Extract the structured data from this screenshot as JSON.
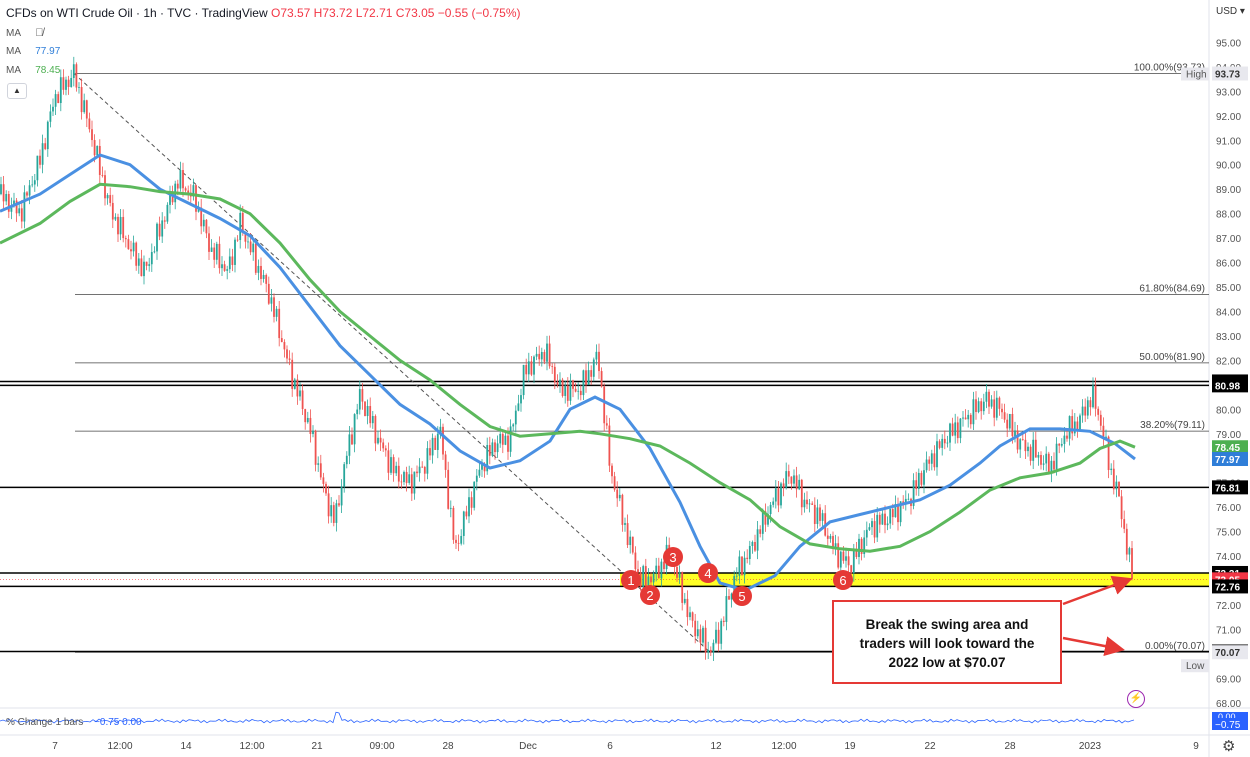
{
  "header": {
    "symbol_title": "CFDs on WTI Crude Oil · 1h · TVC · TradingView",
    "ohlc": "O73.57 H73.72 L72.71 C73.05 −0.55 (−0.75%)"
  },
  "indicators": {
    "ma_label": "MA",
    "ma_hidden_icon": "eye-crossed-icon",
    "ma1_value": "77.97",
    "ma2_value": "78.45"
  },
  "currency": "USD",
  "percent_change": {
    "label": "% Change 1 bars",
    "value": "−0.75 0.00",
    "axis_top": "0.00",
    "axis_bottom": "−0.75"
  },
  "annotation": {
    "line1": "Break the swing area and",
    "line2": "traders will look toward the",
    "line3": "2022 low at $70.07"
  },
  "colors": {
    "ma_blue": "#4a90e2",
    "ma_green": "#5cb85c",
    "up_candle": "#26a69a",
    "down_candle": "#ef5350",
    "highlight": "#ffff00",
    "annotation_red": "#e53935"
  },
  "chart_data": {
    "type": "line",
    "title": "CFDs on WTI Crude Oil · 1h · TVC",
    "y_axis_ticks": [
      "95.00",
      "94.00",
      "93.00",
      "92.00",
      "91.00",
      "90.00",
      "89.00",
      "88.00",
      "87.00",
      "86.00",
      "85.00",
      "84.00",
      "83.00",
      "82.00",
      "81.00",
      "80.00",
      "79.00",
      "78.00",
      "77.00",
      "76.00",
      "75.00",
      "74.00",
      "73.00",
      "72.00",
      "71.00",
      "70.00",
      "69.00",
      "68.00"
    ],
    "ylim": [
      67.5,
      95.5
    ],
    "x_axis_ticks": [
      "7",
      "12:00",
      "14",
      "12:00",
      "21",
      "09:00",
      "28",
      "Dec",
      "6",
      "12",
      "12:00",
      "19",
      "22",
      "28",
      "2023",
      "9"
    ],
    "fib_levels": [
      {
        "label": "100.00%(93.73)",
        "value": 93.73
      },
      {
        "label": "61.80%(84.69)",
        "value": 84.69
      },
      {
        "label": "50.00%(81.90)",
        "value": 81.9
      },
      {
        "label": "38.20%(79.11)",
        "value": 79.11
      },
      {
        "label": "0.00%(70.07)",
        "value": 70.07
      }
    ],
    "horizontal_levels": [
      81.14,
      80.98,
      76.81,
      73.31,
      72.76,
      70.1
    ],
    "price_tags": [
      {
        "text": "93.73",
        "value": 93.73,
        "style": "label"
      },
      {
        "text": "81.14",
        "value": 81.14,
        "style": "black"
      },
      {
        "text": "80.98",
        "value": 80.98,
        "style": "black"
      },
      {
        "text": "78.45",
        "value": 78.45,
        "style": "green"
      },
      {
        "text": "77.97",
        "value": 77.97,
        "style": "blue"
      },
      {
        "text": "76.81",
        "value": 76.81,
        "style": "black"
      },
      {
        "text": "73.31",
        "value": 73.31,
        "style": "black"
      },
      {
        "text": "73.05",
        "value": 73.05,
        "style": "red"
      },
      {
        "text": "72.76",
        "value": 72.76,
        "style": "black"
      },
      {
        "text": "70.10",
        "value": 70.1,
        "style": "black"
      },
      {
        "text": "70.07",
        "value": 70.07,
        "style": "label"
      }
    ],
    "high_label": "High",
    "low_label": "Low",
    "swing_zone": [
      72.76,
      73.31
    ],
    "swing_points": [
      "1",
      "2",
      "3",
      "4",
      "5",
      "6"
    ],
    "price_series": [
      [
        0,
        88.8
      ],
      [
        20,
        88.0
      ],
      [
        40,
        90.2
      ],
      [
        55,
        92.8
      ],
      [
        74,
        93.73
      ],
      [
        90,
        91.4
      ],
      [
        110,
        88.2
      ],
      [
        130,
        86.6
      ],
      [
        145,
        85.6
      ],
      [
        160,
        87.4
      ],
      [
        178,
        89.4
      ],
      [
        195,
        88.6
      ],
      [
        210,
        86.6
      ],
      [
        228,
        85.6
      ],
      [
        240,
        87.6
      ],
      [
        256,
        86.0
      ],
      [
        270,
        84.6
      ],
      [
        290,
        81.6
      ],
      [
        310,
        79.2
      ],
      [
        325,
        76.5
      ],
      [
        335,
        75.4
      ],
      [
        345,
        77.8
      ],
      [
        360,
        80.6
      ],
      [
        380,
        78.6
      ],
      [
        395,
        77.4
      ],
      [
        410,
        77.0
      ],
      [
        425,
        77.8
      ],
      [
        440,
        79.2
      ],
      [
        455,
        74.2
      ],
      [
        465,
        75.6
      ],
      [
        480,
        77.6
      ],
      [
        495,
        78.6
      ],
      [
        510,
        78.8
      ],
      [
        525,
        81.6
      ],
      [
        545,
        82.4
      ],
      [
        560,
        80.8
      ],
      [
        580,
        80.8
      ],
      [
        598,
        82.2
      ],
      [
        610,
        77.6
      ],
      [
        625,
        75.2
      ],
      [
        640,
        73.0
      ],
      [
        655,
        73.2
      ],
      [
        670,
        74.2
      ],
      [
        690,
        71.4
      ],
      [
        710,
        70.07
      ],
      [
        720,
        71.0
      ],
      [
        735,
        73.2
      ],
      [
        750,
        74.2
      ],
      [
        770,
        76.0
      ],
      [
        790,
        77.4
      ],
      [
        805,
        76.2
      ],
      [
        820,
        75.6
      ],
      [
        835,
        74.2
      ],
      [
        850,
        73.6
      ],
      [
        870,
        75.2
      ],
      [
        890,
        75.6
      ],
      [
        910,
        76.4
      ],
      [
        925,
        77.6
      ],
      [
        945,
        78.8
      ],
      [
        965,
        79.6
      ],
      [
        985,
        80.4
      ],
      [
        1000,
        80.0
      ],
      [
        1020,
        78.6
      ],
      [
        1035,
        78.2
      ],
      [
        1050,
        77.6
      ],
      [
        1065,
        79.0
      ],
      [
        1080,
        79.6
      ],
      [
        1092,
        80.6
      ],
      [
        1100,
        79.6
      ],
      [
        1110,
        77.6
      ],
      [
        1120,
        76.2
      ],
      [
        1128,
        74.0
      ],
      [
        1134,
        73.05
      ]
    ],
    "series": [
      {
        "name": "MA",
        "value": 77.97,
        "values": [
          [
            0,
            88.1
          ],
          [
            40,
            88.8
          ],
          [
            70,
            89.6
          ],
          [
            100,
            90.4
          ],
          [
            130,
            90.0
          ],
          [
            160,
            89.0
          ],
          [
            190,
            88.4
          ],
          [
            220,
            87.8
          ],
          [
            250,
            87.1
          ],
          [
            280,
            85.8
          ],
          [
            310,
            84.2
          ],
          [
            340,
            82.6
          ],
          [
            370,
            81.4
          ],
          [
            400,
            80.2
          ],
          [
            430,
            79.4
          ],
          [
            460,
            78.3
          ],
          [
            490,
            77.6
          ],
          [
            520,
            77.9
          ],
          [
            550,
            78.7
          ],
          [
            570,
            80.0
          ],
          [
            595,
            80.5
          ],
          [
            620,
            80.0
          ],
          [
            650,
            78.4
          ],
          [
            680,
            76.2
          ],
          [
            700,
            74.4
          ],
          [
            720,
            72.9
          ],
          [
            745,
            72.6
          ],
          [
            775,
            73.2
          ],
          [
            800,
            74.4
          ],
          [
            830,
            75.4
          ],
          [
            860,
            75.7
          ],
          [
            890,
            76.0
          ],
          [
            920,
            76.3
          ],
          [
            950,
            76.9
          ],
          [
            980,
            77.8
          ],
          [
            1000,
            78.5
          ],
          [
            1030,
            79.2
          ],
          [
            1060,
            79.2
          ],
          [
            1090,
            79.1
          ],
          [
            1115,
            78.6
          ],
          [
            1135,
            77.97
          ]
        ]
      },
      {
        "name": "MA",
        "value": 78.45,
        "values": [
          [
            0,
            86.8
          ],
          [
            40,
            87.6
          ],
          [
            70,
            88.5
          ],
          [
            100,
            89.2
          ],
          [
            130,
            89.1
          ],
          [
            160,
            88.9
          ],
          [
            190,
            88.8
          ],
          [
            220,
            88.6
          ],
          [
            250,
            88.0
          ],
          [
            280,
            86.8
          ],
          [
            310,
            85.3
          ],
          [
            340,
            84.0
          ],
          [
            370,
            83.0
          ],
          [
            400,
            82.0
          ],
          [
            430,
            81.2
          ],
          [
            460,
            80.2
          ],
          [
            490,
            79.3
          ],
          [
            520,
            78.9
          ],
          [
            550,
            79.0
          ],
          [
            580,
            79.1
          ],
          [
            600,
            79.0
          ],
          [
            630,
            78.8
          ],
          [
            660,
            78.5
          ],
          [
            690,
            77.8
          ],
          [
            720,
            77.0
          ],
          [
            750,
            76.3
          ],
          [
            780,
            75.2
          ],
          [
            810,
            74.5
          ],
          [
            840,
            74.3
          ],
          [
            870,
            74.2
          ],
          [
            900,
            74.4
          ],
          [
            930,
            75.0
          ],
          [
            960,
            75.8
          ],
          [
            990,
            76.7
          ],
          [
            1020,
            77.2
          ],
          [
            1050,
            77.4
          ],
          [
            1080,
            77.8
          ],
          [
            1100,
            78.4
          ],
          [
            1120,
            78.7
          ],
          [
            1135,
            78.45
          ]
        ]
      }
    ]
  }
}
